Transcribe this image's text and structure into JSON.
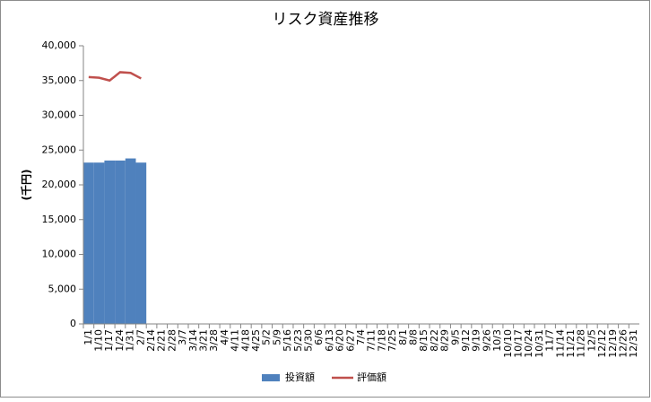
{
  "chart_data": {
    "type": "bar",
    "title": "リスク資産推移",
    "y_label": "(千円)",
    "categories": [
      "1/1",
      "1/10",
      "1/17",
      "1/24",
      "1/31",
      "2/7",
      "2/14",
      "2/21",
      "2/28",
      "3/7",
      "3/14",
      "3/21",
      "3/28",
      "4/4",
      "4/11",
      "4/18",
      "4/25",
      "5/2",
      "5/9",
      "5/16",
      "5/23",
      "5/30",
      "6/6",
      "6/13",
      "6/20",
      "6/27",
      "7/4",
      "7/11",
      "7/18",
      "7/25",
      "8/1",
      "8/8",
      "8/15",
      "8/22",
      "8/29",
      "9/5",
      "9/12",
      "9/19",
      "9/26",
      "10/3",
      "10/10",
      "10/17",
      "10/24",
      "10/31",
      "11/7",
      "11/14",
      "11/21",
      "11/28",
      "12/5",
      "12/12",
      "12/19",
      "12/26",
      "12/31"
    ],
    "series": [
      {
        "name": "投資額",
        "type": "bar",
        "color": "#4f81bd",
        "values": [
          23200,
          23200,
          23500,
          23500,
          23800,
          23200,
          null,
          null,
          null,
          null,
          null,
          null,
          null,
          null,
          null,
          null,
          null,
          null,
          null,
          null,
          null,
          null,
          null,
          null,
          null,
          null,
          null,
          null,
          null,
          null,
          null,
          null,
          null,
          null,
          null,
          null,
          null,
          null,
          null,
          null,
          null,
          null,
          null,
          null,
          null,
          null,
          null,
          null,
          null,
          null,
          null,
          null,
          null
        ]
      },
      {
        "name": "評価額",
        "type": "line",
        "color": "#c0504d",
        "values": [
          35500,
          35400,
          35000,
          36200,
          36100,
          35300,
          null,
          null,
          null,
          null,
          null,
          null,
          null,
          null,
          null,
          null,
          null,
          null,
          null,
          null,
          null,
          null,
          null,
          null,
          null,
          null,
          null,
          null,
          null,
          null,
          null,
          null,
          null,
          null,
          null,
          null,
          null,
          null,
          null,
          null,
          null,
          null,
          null,
          null,
          null,
          null,
          null,
          null,
          null,
          null,
          null,
          null,
          null
        ]
      }
    ],
    "ylim": [
      0,
      40000
    ],
    "yticks": [
      0,
      {
        "value": 5000,
        "label": "5,000"
      },
      {
        "value": 10000,
        "label": "10,000"
      },
      {
        "value": 15000,
        "label": "15,000"
      },
      {
        "value": 20000,
        "label": "20,000"
      },
      {
        "value": 25000,
        "label": "25,000"
      },
      {
        "value": 30000,
        "label": "30,000"
      },
      {
        "value": 35000,
        "label": "35,000"
      },
      {
        "value": 40000,
        "label": "40,000"
      }
    ],
    "grid": false,
    "legend": "bottom"
  }
}
